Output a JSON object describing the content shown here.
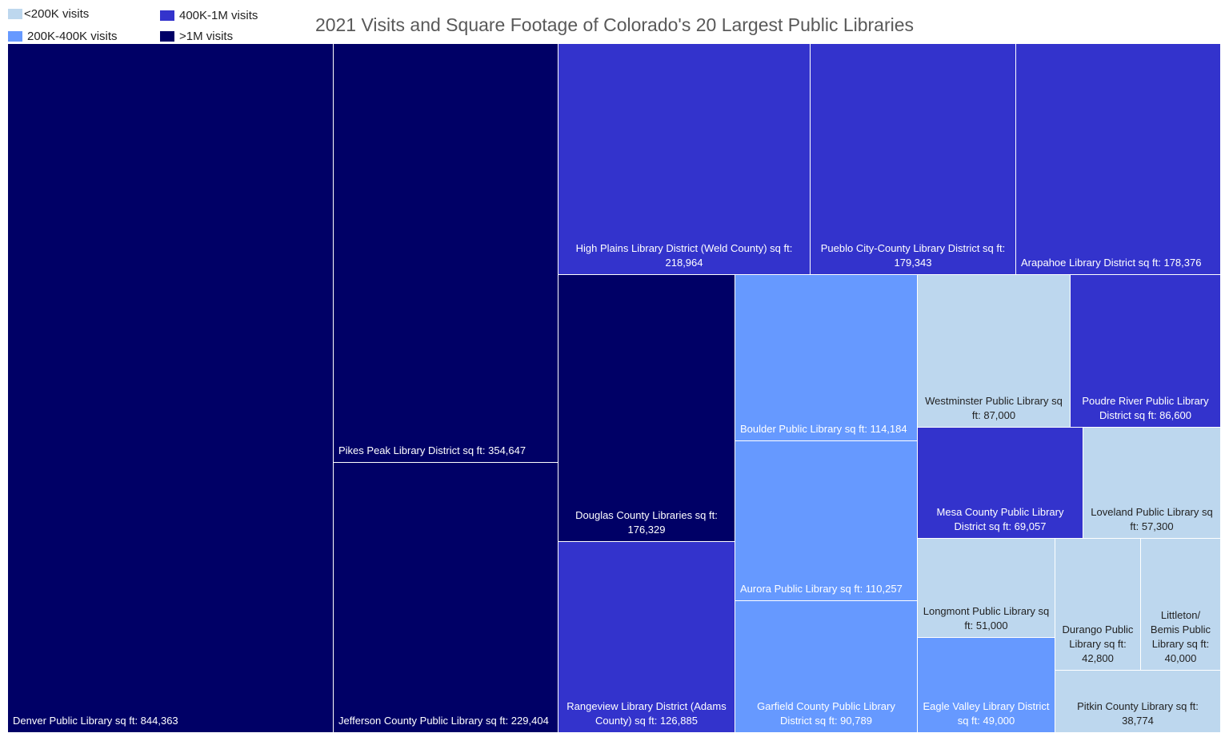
{
  "chart_data": {
    "type": "treemap",
    "title": "2021 Visits and Square Footage of Colorado's 20 Largest Public Libraries",
    "value_label": "sq ft",
    "legend": [
      {
        "name": "<200K visits",
        "color": "#BDD7EE"
      },
      {
        "name": "200K-400K visits",
        "color": "#6699FF"
      },
      {
        "name": "400K-1M visits",
        "color": "#3333CC"
      },
      {
        "name": ">1M visits",
        "color": "#000066"
      }
    ],
    "legend_placement": "top-left",
    "items": [
      {
        "name": "Denver Public Library",
        "sqft": 844363,
        "category": ">1M visits"
      },
      {
        "name": "Pikes Peak Library District",
        "sqft": 354647,
        "category": ">1M visits"
      },
      {
        "name": "Jefferson County Public Library",
        "sqft": 229404,
        "category": ">1M visits"
      },
      {
        "name": "High Plains Library District (Weld County)",
        "sqft": 218964,
        "category": "400K-1M visits"
      },
      {
        "name": "Pueblo City-County Library District",
        "sqft": 179343,
        "category": "400K-1M visits"
      },
      {
        "name": "Arapahoe Library District",
        "sqft": 178376,
        "category": "400K-1M visits"
      },
      {
        "name": "Douglas County Libraries",
        "sqft": 176329,
        "category": ">1M visits"
      },
      {
        "name": "Rangeview Library District (Adams County)",
        "sqft": 126885,
        "category": "400K-1M visits"
      },
      {
        "name": "Boulder Public Library",
        "sqft": 114184,
        "category": "200K-400K visits"
      },
      {
        "name": "Aurora Public Library",
        "sqft": 110257,
        "category": "200K-400K visits"
      },
      {
        "name": "Garfield County Public Library District",
        "sqft": 90789,
        "category": "200K-400K visits"
      },
      {
        "name": "Westminster Public Library",
        "sqft": 87000,
        "category": "<200K visits"
      },
      {
        "name": "Poudre River Public Library District",
        "sqft": 86600,
        "category": "400K-1M visits"
      },
      {
        "name": "Mesa County Public Library District",
        "sqft": 69057,
        "category": "400K-1M visits"
      },
      {
        "name": "Loveland Public Library",
        "sqft": 57300,
        "category": "<200K visits"
      },
      {
        "name": "Longmont Public Library",
        "sqft": 51000,
        "category": "<200K visits"
      },
      {
        "name": "Eagle Valley Library District",
        "sqft": 49000,
        "category": "200K-400K visits"
      },
      {
        "name": "Durango Public Library",
        "sqft": 42800,
        "category": "<200K visits"
      },
      {
        "name": "Littleton/ Bemis Public Library",
        "sqft": 40000,
        "category": "<200K visits"
      },
      {
        "name": "Pitkin County Library",
        "sqft": 38774,
        "category": "<200K visits"
      }
    ]
  }
}
